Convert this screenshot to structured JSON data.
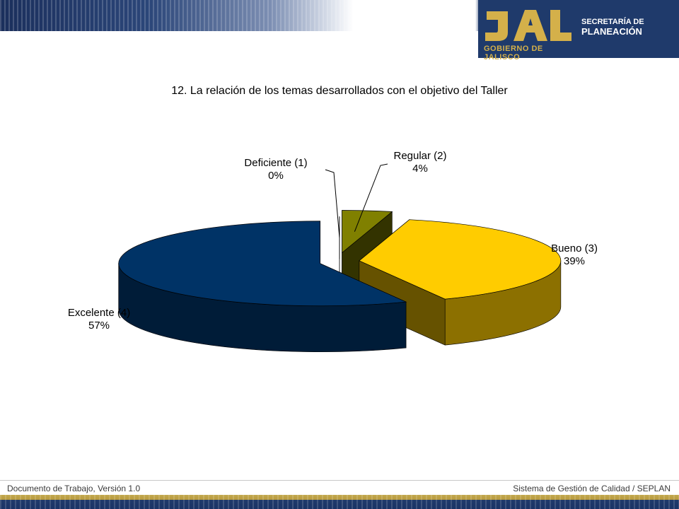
{
  "header": {
    "logo_secretaria": "SECRETARÍA DE",
    "logo_planeacion": "PLANEACIÓN",
    "logo_gobierno": "GOBIERNO DE JALISCO",
    "colors": {
      "navy": "#1f3a6b",
      "gold": "#d4b04a"
    }
  },
  "chart_data": {
    "type": "pie",
    "title": "12. La relación de los temas desarrollados con el objetivo del Taller",
    "slices": [
      {
        "label": "Deficiente (1)",
        "percent_label": "0%",
        "value": 0,
        "color": "#ffffff"
      },
      {
        "label": "Regular (2)",
        "percent_label": "4%",
        "value": 4,
        "color": "#808000"
      },
      {
        "label": "Bueno (3)",
        "percent_label": "39%",
        "value": 39,
        "color": "#ffcc00"
      },
      {
        "label": "Excelente (4)",
        "percent_label": "57%",
        "value": 57,
        "color": "#003366"
      }
    ],
    "style": "3d-exploded"
  },
  "footer": {
    "left": "Documento de Trabajo, Versión 1.0",
    "right": "Sistema de Gestión de Calidad / SEPLAN"
  }
}
